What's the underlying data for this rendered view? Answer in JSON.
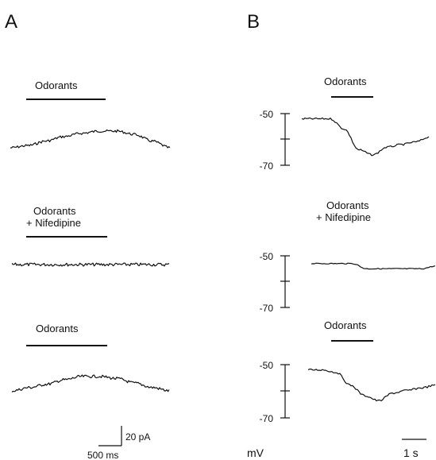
{
  "figure": {
    "panel_a_label": "A",
    "panel_b_label": "B",
    "panel_a": {
      "condition_1": "Odorants",
      "condition_2_line1": "Odorants",
      "condition_2_line2": "+ Nifedipine",
      "condition_3": "Odorants",
      "scale_current": "20 pA",
      "scale_time": "500 ms"
    },
    "panel_b": {
      "condition_1": "Odorants",
      "condition_2_line1": "Odorants",
      "condition_2_line2": "+ Nifedipine",
      "condition_3": "Odorants",
      "tick_upper": "-50",
      "tick_lower": "-70",
      "unit": "mV",
      "scale_time": "1 s"
    }
  },
  "chart_data": [
    {
      "type": "line",
      "panel": "A",
      "title": "",
      "xlabel": "",
      "ylabel": "",
      "traces": [
        {
          "stimulus": "Odorants",
          "relative_current_pA": [
            0,
            2,
            6,
            10,
            13,
            15,
            15,
            12,
            6,
            0
          ]
        },
        {
          "stimulus": "Odorants + Nifedipine",
          "relative_current_pA": [
            0,
            0,
            0,
            0,
            0,
            0,
            0,
            0,
            0,
            0
          ]
        },
        {
          "stimulus": "Odorants",
          "relative_current_pA": [
            0,
            3,
            6,
            10,
            13,
            13,
            11,
            7,
            3,
            0
          ]
        }
      ],
      "scale_bars": {
        "current": "20 pA",
        "time": "500 ms"
      }
    },
    {
      "type": "line",
      "panel": "B",
      "title": "",
      "xlabel": "",
      "ylabel": "mV",
      "ylim": [
        -70,
        -50
      ],
      "traces": [
        {
          "stimulus": "Odorants",
          "membrane_potential_mV": [
            -52,
            -52,
            -52,
            -56,
            -64,
            -66,
            -63,
            -62,
            -61,
            -59
          ]
        },
        {
          "stimulus": "Odorants + Nifedipine",
          "membrane_potential_mV": [
            -53,
            -53,
            -53,
            -53,
            -55,
            -55,
            -55,
            -55,
            -55,
            -54
          ]
        },
        {
          "stimulus": "Odorants",
          "membrane_potential_mV": [
            -52,
            -52,
            -53,
            -58,
            -62,
            -64,
            -61,
            -60,
            -59,
            -58
          ]
        }
      ],
      "scale_bars": {
        "time": "1 s"
      }
    }
  ]
}
